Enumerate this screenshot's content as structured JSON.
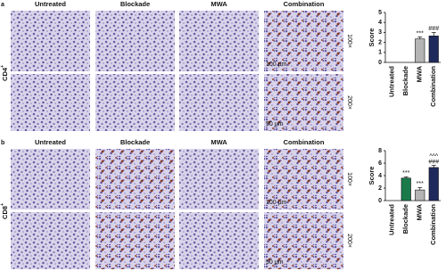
{
  "panels": [
    {
      "label": "a",
      "marker": "CD4",
      "marker_sup": "+",
      "columns": [
        "Untreated",
        "Blockade",
        "MWA",
        "Combination"
      ],
      "magnifications": [
        "100×",
        "200×"
      ],
      "scale_bars": [
        "100 μm",
        "50 μm"
      ]
    },
    {
      "label": "b",
      "marker": "CD8",
      "marker_sup": "+",
      "columns": [
        "Untreated",
        "Blockade",
        "MWA",
        "Combination"
      ],
      "magnifications": [
        "100×",
        "200×"
      ],
      "scale_bars": [
        "100 μm",
        "50 μm"
      ]
    }
  ],
  "chart_data": [
    {
      "type": "bar",
      "ylabel": "Score",
      "categories": [
        "Untreated",
        "Blockade",
        "MWA",
        "Combination"
      ],
      "values": [
        0,
        0,
        2.35,
        2.65
      ],
      "errors": [
        0,
        0,
        0.2,
        0.35
      ],
      "colors": [
        "#ffffff",
        "#1a7a4a",
        "#b4b4b4",
        "#1f2a5c"
      ],
      "annotations": [
        null,
        null,
        [
          "***"
        ],
        [
          "###"
        ]
      ],
      "ylim": [
        0,
        5
      ],
      "yticks": [
        0,
        1,
        2,
        3,
        4,
        5
      ]
    },
    {
      "type": "bar",
      "ylabel": "Score",
      "categories": [
        "Untreated",
        "Blockade",
        "MWA",
        "Combination"
      ],
      "values": [
        0,
        3.6,
        1.7,
        5.3
      ],
      "errors": [
        0,
        0.2,
        0.4,
        0.35
      ],
      "colors": [
        "#ffffff",
        "#1a7a4a",
        "#b4b4b4",
        "#1f2a5c"
      ],
      "annotations": [
        null,
        [
          "***"
        ],
        [
          "***"
        ],
        [
          "^^^",
          "###"
        ]
      ],
      "ylim": [
        0,
        8
      ],
      "yticks": [
        0,
        2,
        4,
        6,
        8
      ]
    }
  ]
}
